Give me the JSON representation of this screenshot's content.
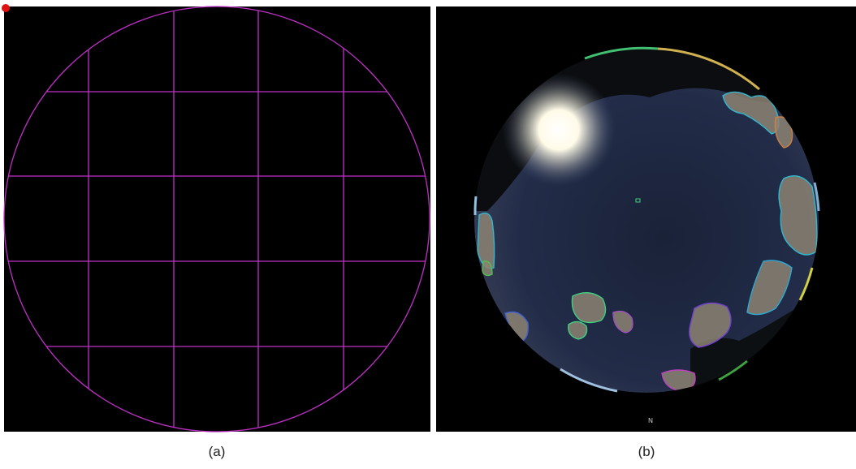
{
  "panels": [
    {
      "caption": "(a)"
    },
    {
      "caption": "(b)",
      "compass_label": "N"
    }
  ]
}
